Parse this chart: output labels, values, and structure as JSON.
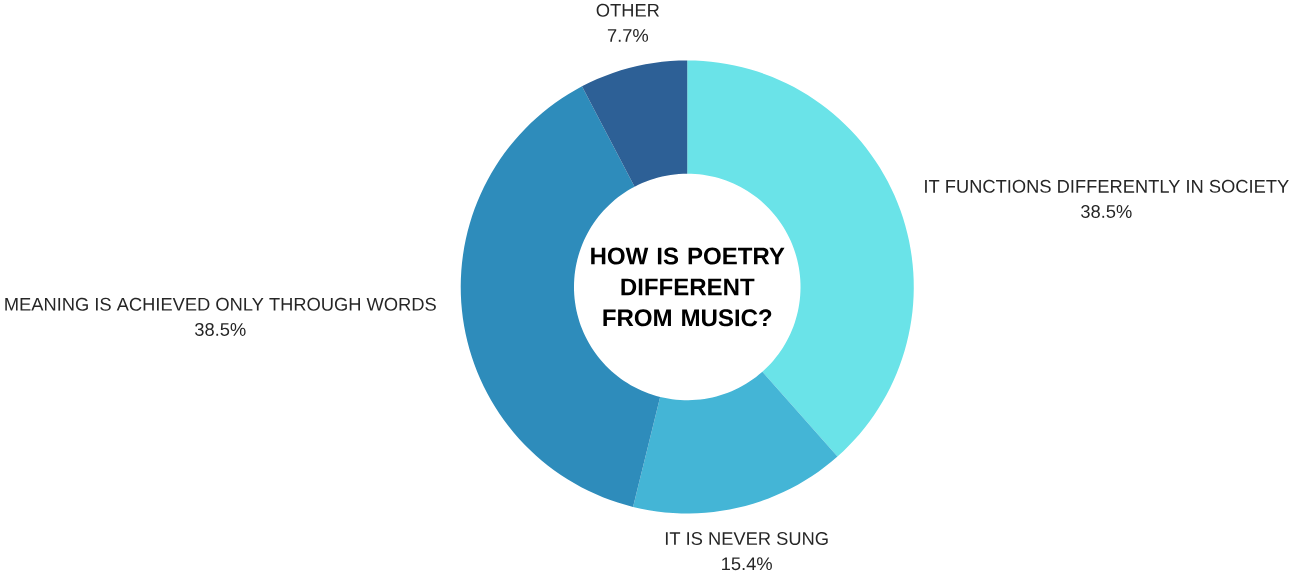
{
  "chart_data": {
    "type": "donut",
    "title": "HOW IS POETRY DIFFERENT FROM MUSIC?",
    "categories": [
      "IT FUNCTIONS DIFFERENTLY IN SOCIETY",
      "IT IS NEVER SUNG",
      "MEANING IS ACHIEVED ONLY THROUGH WORDS",
      "OTHER"
    ],
    "values": [
      38.5,
      15.4,
      38.5,
      7.7
    ],
    "value_labels": [
      "38.5%",
      "15.4%",
      "38.5%",
      "7.7%"
    ],
    "colors": [
      "#6ae3e8",
      "#44b5d6",
      "#2e8cbb",
      "#2d6096"
    ]
  }
}
